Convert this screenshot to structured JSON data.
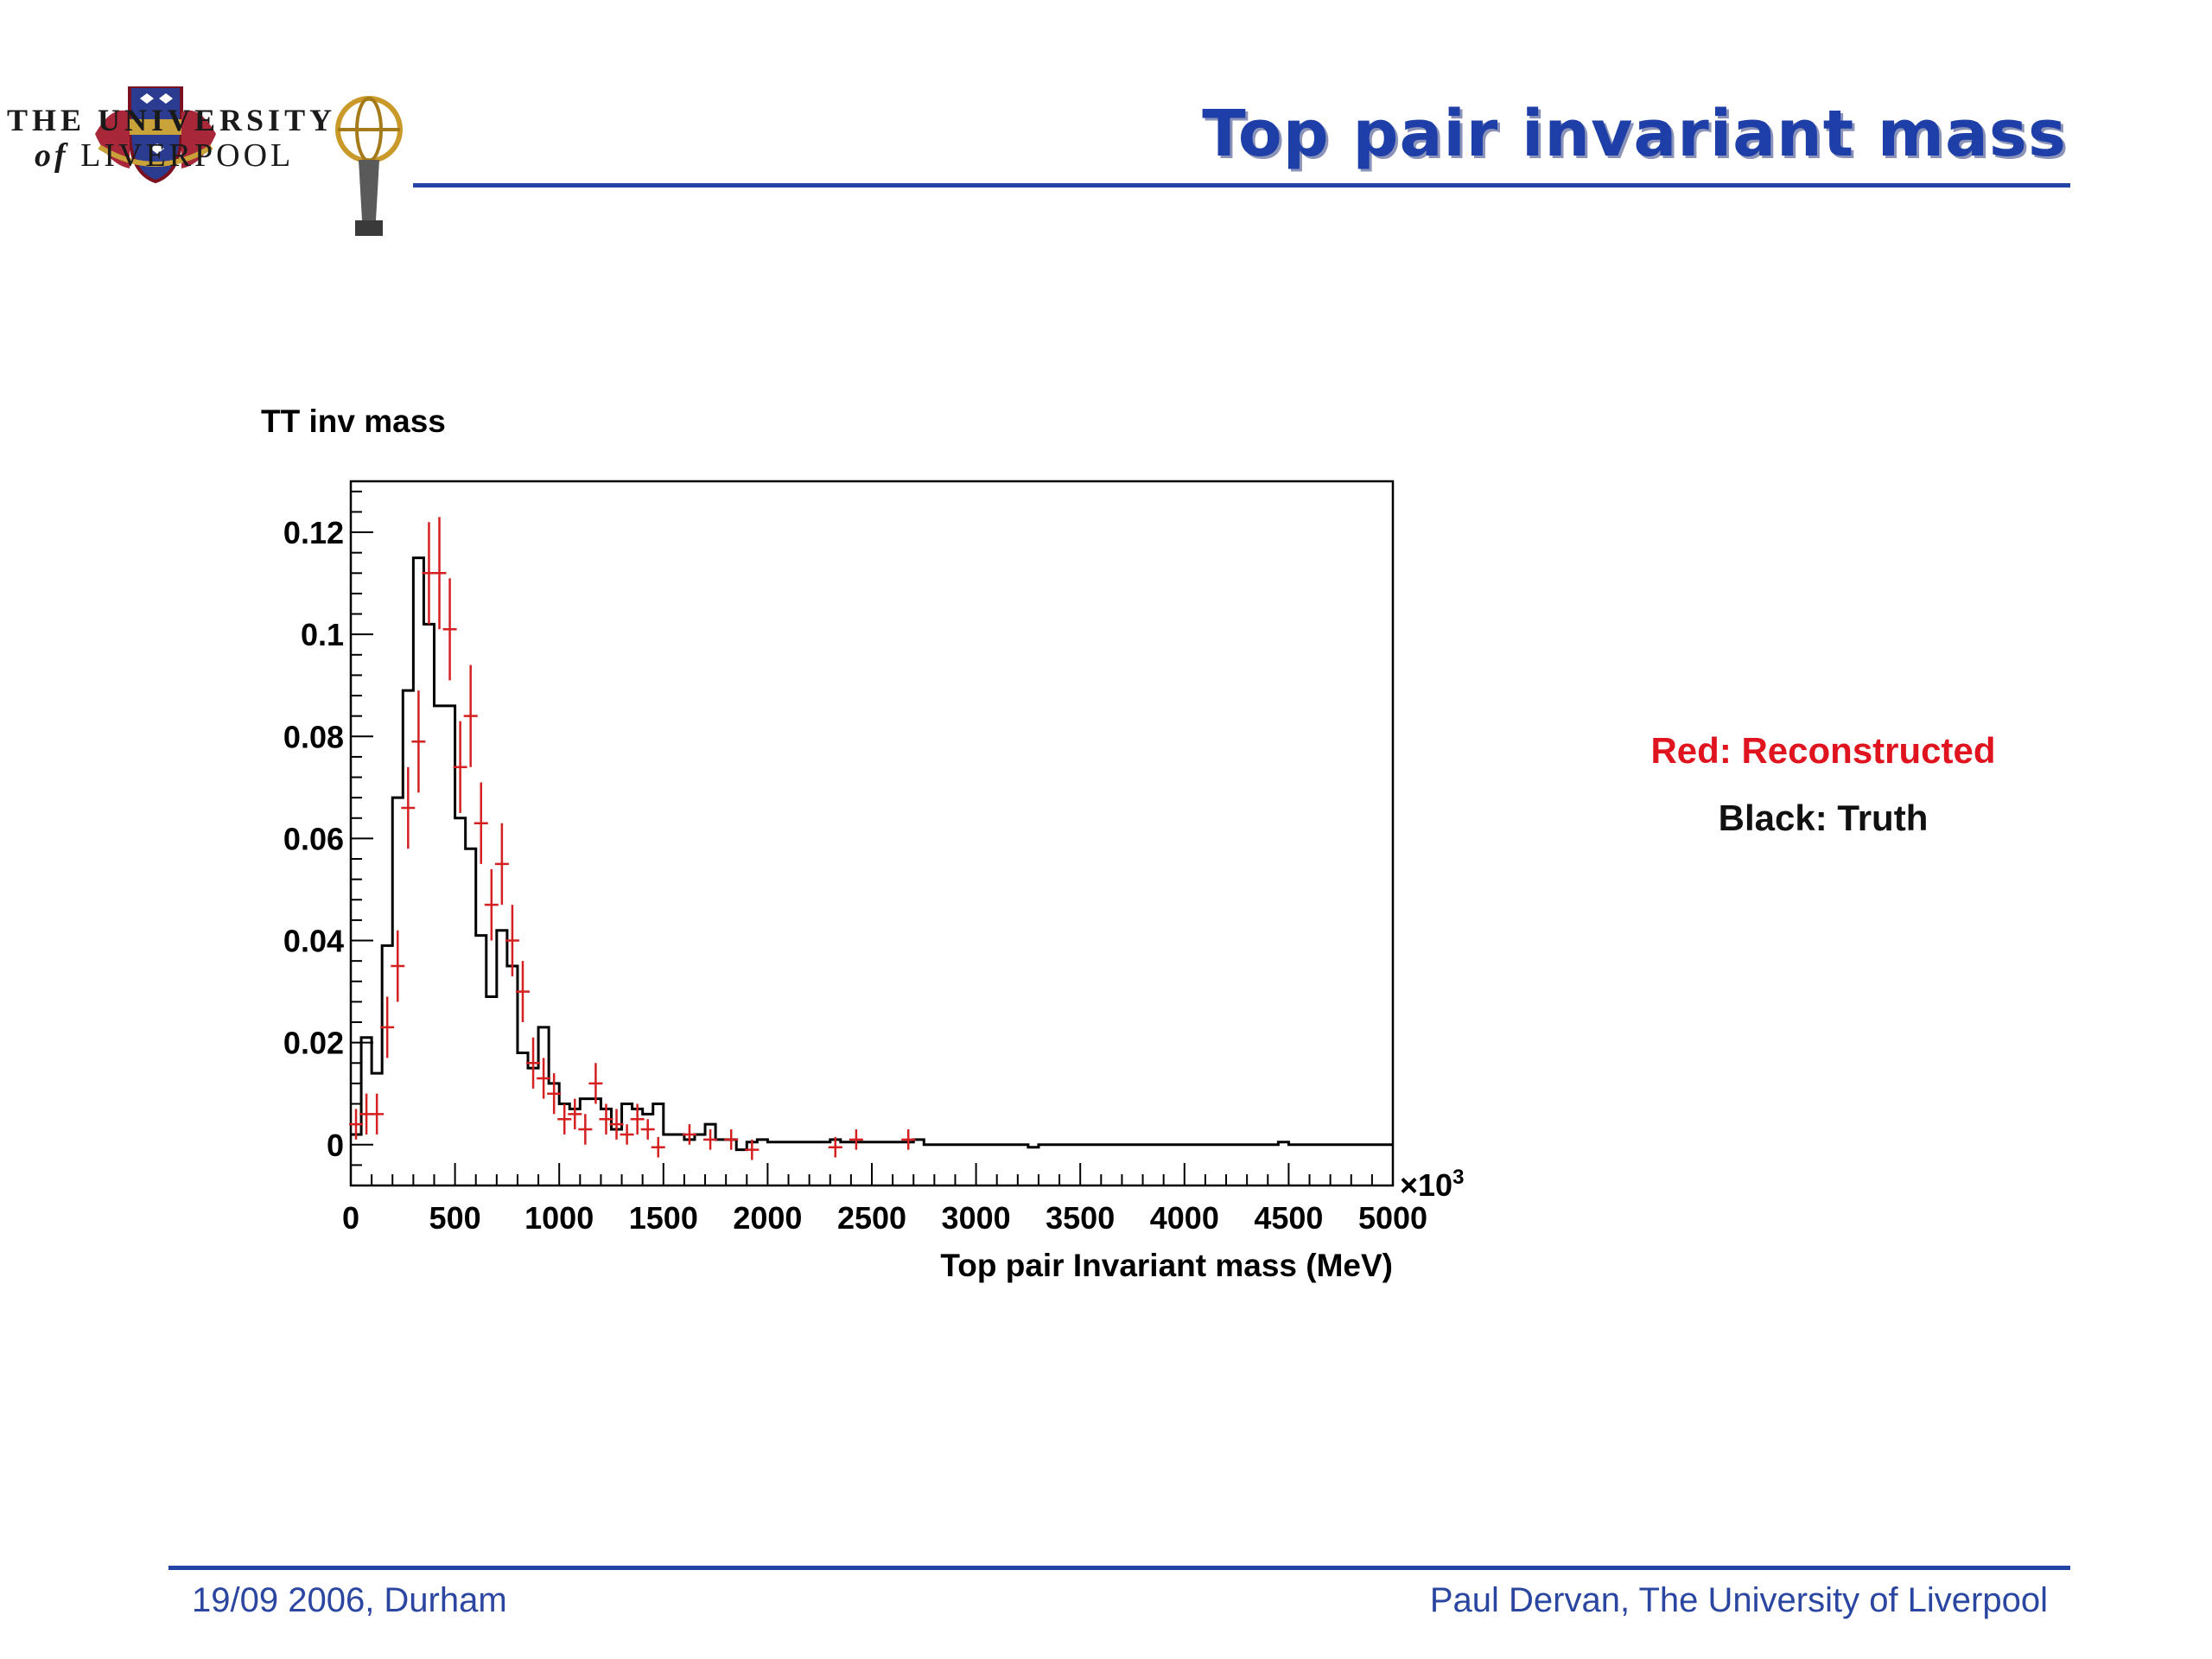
{
  "slide": {
    "title": "Top pair invariant mass",
    "university_line1": "THE UNIVERSITY",
    "university_of": "of",
    "university_line2": "LIVERPOOL",
    "legend_red": "Red: Reconstructed",
    "legend_black": "Black: Truth",
    "footer_left": "19/09 2006, Durham",
    "footer_right": "Paul Dervan, The University of Liverpool",
    "accent_color": "#2344a6"
  },
  "chart_data": {
    "type": "histogram",
    "title": "TT inv mass",
    "xlabel": "Top pair Invariant mass (MeV)",
    "ylabel": "",
    "x_multiplier_label": "×10",
    "x_multiplier_exp": "3",
    "xlim": [
      0,
      5000
    ],
    "ylim": [
      -0.008,
      0.13
    ],
    "grid": false,
    "x_ticks": [
      0,
      500,
      1000,
      1500,
      2000,
      2500,
      3000,
      3500,
      4000,
      4500,
      5000
    ],
    "x_tick_labels": [
      "0",
      "500",
      "1000",
      "1500",
      "2000",
      "2500",
      "3000",
      "3500",
      "4000",
      "4500",
      "5000"
    ],
    "y_ticks": [
      0,
      0.02,
      0.04,
      0.06,
      0.08,
      0.1,
      0.12
    ],
    "y_tick_labels": [
      "0",
      "0.02",
      "0.04",
      "0.06",
      "0.08",
      "0.1",
      "0.12"
    ],
    "series": [
      {
        "name": "Truth",
        "color": "#000000",
        "style": "step",
        "bin_edges": [
          0,
          50,
          100,
          150,
          200,
          250,
          300,
          350,
          400,
          450,
          500,
          550,
          600,
          650,
          700,
          750,
          800,
          850,
          900,
          950,
          1000,
          1050,
          1100,
          1150,
          1200,
          1250,
          1300,
          1350,
          1400,
          1450,
          1500,
          1550,
          1600,
          1650,
          1700,
          1750,
          1800,
          1850,
          1900,
          1950,
          2000,
          2050,
          2300,
          2350,
          2700,
          2750,
          3250,
          3300,
          4450,
          4500,
          5000
        ],
        "values": [
          0.002,
          0.021,
          0.014,
          0.039,
          0.068,
          0.089,
          0.115,
          0.102,
          0.086,
          0.086,
          0.064,
          0.058,
          0.041,
          0.029,
          0.042,
          0.035,
          0.018,
          0.015,
          0.023,
          0.012,
          0.008,
          0.007,
          0.009,
          0.009,
          0.007,
          0.003,
          0.008,
          0.007,
          0.006,
          0.008,
          0.002,
          0.002,
          0.001,
          0.002,
          0.004,
          0.001,
          0.001,
          -0.001,
          0.0005,
          0.001,
          0.0005,
          0.0005,
          0.001,
          0.0005,
          0.001,
          0,
          -0.0005,
          0,
          0.0005,
          0
        ]
      },
      {
        "name": "Reconstructed",
        "color": "#d42020",
        "style": "errorbar",
        "points": [
          {
            "x": 25,
            "y": 0.004,
            "err": 0.003
          },
          {
            "x": 75,
            "y": 0.006,
            "err": 0.004
          },
          {
            "x": 125,
            "y": 0.006,
            "err": 0.004
          },
          {
            "x": 175,
            "y": 0.023,
            "err": 0.006
          },
          {
            "x": 225,
            "y": 0.035,
            "err": 0.007
          },
          {
            "x": 275,
            "y": 0.066,
            "err": 0.008
          },
          {
            "x": 325,
            "y": 0.079,
            "err": 0.01
          },
          {
            "x": 375,
            "y": 0.112,
            "err": 0.01
          },
          {
            "x": 425,
            "y": 0.112,
            "err": 0.011
          },
          {
            "x": 475,
            "y": 0.101,
            "err": 0.01
          },
          {
            "x": 525,
            "y": 0.074,
            "err": 0.009
          },
          {
            "x": 575,
            "y": 0.084,
            "err": 0.01
          },
          {
            "x": 625,
            "y": 0.063,
            "err": 0.008
          },
          {
            "x": 675,
            "y": 0.047,
            "err": 0.007
          },
          {
            "x": 725,
            "y": 0.055,
            "err": 0.008
          },
          {
            "x": 775,
            "y": 0.04,
            "err": 0.007
          },
          {
            "x": 825,
            "y": 0.03,
            "err": 0.006
          },
          {
            "x": 875,
            "y": 0.016,
            "err": 0.005
          },
          {
            "x": 925,
            "y": 0.013,
            "err": 0.004
          },
          {
            "x": 975,
            "y": 0.01,
            "err": 0.004
          },
          {
            "x": 1025,
            "y": 0.005,
            "err": 0.003
          },
          {
            "x": 1075,
            "y": 0.006,
            "err": 0.003
          },
          {
            "x": 1125,
            "y": 0.003,
            "err": 0.003
          },
          {
            "x": 1175,
            "y": 0.012,
            "err": 0.004
          },
          {
            "x": 1225,
            "y": 0.005,
            "err": 0.003
          },
          {
            "x": 1275,
            "y": 0.004,
            "err": 0.003
          },
          {
            "x": 1325,
            "y": 0.002,
            "err": 0.002
          },
          {
            "x": 1375,
            "y": 0.005,
            "err": 0.003
          },
          {
            "x": 1425,
            "y": 0.003,
            "err": 0.002
          },
          {
            "x": 1475,
            "y": -0.0005,
            "err": 0.002
          },
          {
            "x": 1625,
            "y": 0.002,
            "err": 0.002
          },
          {
            "x": 1725,
            "y": 0.001,
            "err": 0.002
          },
          {
            "x": 1825,
            "y": 0.001,
            "err": 0.002
          },
          {
            "x": 1925,
            "y": -0.001,
            "err": 0.002
          },
          {
            "x": 2325,
            "y": -0.0005,
            "err": 0.002
          },
          {
            "x": 2425,
            "y": 0.001,
            "err": 0.002
          },
          {
            "x": 2675,
            "y": 0.001,
            "err": 0.002
          }
        ]
      }
    ]
  }
}
